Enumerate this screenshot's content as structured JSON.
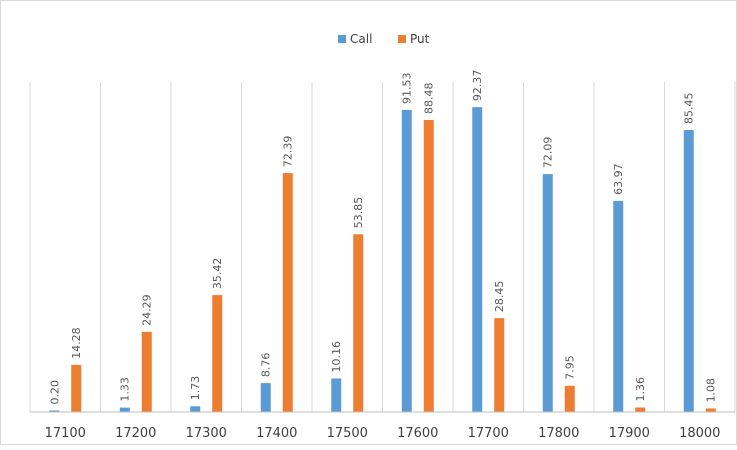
{
  "chart_data": {
    "type": "bar",
    "categories": [
      "17100",
      "17200",
      "17300",
      "17400",
      "17500",
      "17600",
      "17700",
      "17800",
      "17900",
      "18000"
    ],
    "series": [
      {
        "name": "Call",
        "color": "#5B9BD5",
        "values": [
          0.2,
          1.33,
          1.73,
          8.76,
          10.16,
          91.53,
          92.37,
          72.09,
          63.97,
          85.45
        ],
        "labels": [
          "0.20",
          "1.33",
          "1.73",
          "8.76",
          "10.16",
          "91.53",
          "92.37",
          "72.09",
          "63.97",
          "85.45"
        ]
      },
      {
        "name": "Put",
        "color": "#ED7D31",
        "values": [
          14.28,
          24.29,
          35.42,
          72.39,
          53.85,
          88.48,
          28.45,
          7.95,
          1.36,
          1.08
        ],
        "labels": [
          "14.28",
          "24.29",
          "35.42",
          "72.39",
          "53.85",
          "88.48",
          "28.45",
          "7.95",
          "1.36",
          "1.08"
        ]
      }
    ],
    "ylim": [
      0,
      100
    ],
    "grid": "vertical",
    "legend_position": "top"
  }
}
